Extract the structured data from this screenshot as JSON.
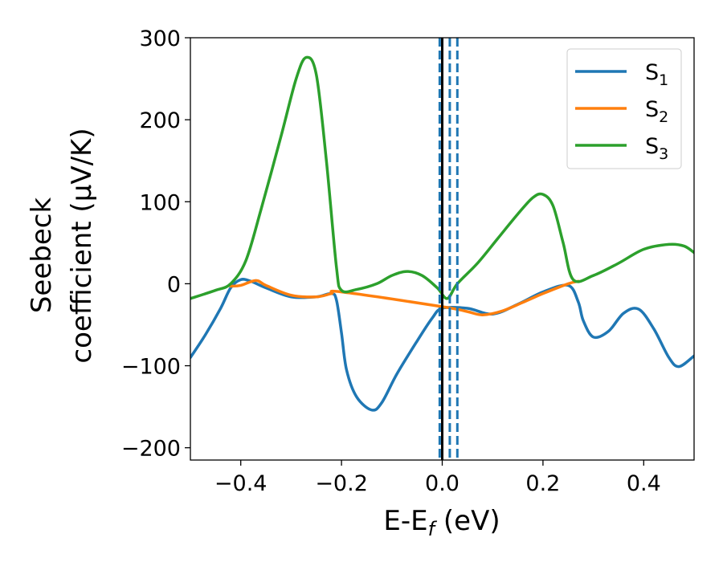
{
  "chart_data": {
    "type": "line",
    "xlabel": "E-E",
    "xlabel_sub": "f",
    "xlabel_unit": "(eV)",
    "ylabel_line1": "Seebeck",
    "ylabel_line2": "coefficient  (μV/K)",
    "xlim": [
      -0.5,
      0.5
    ],
    "ylim": [
      -215,
      300
    ],
    "x_ticks": [
      -0.4,
      -0.2,
      0.0,
      0.2,
      0.4
    ],
    "x_tick_labels": [
      "−0.4",
      "−0.2",
      "0.0",
      "0.2",
      "0.4"
    ],
    "y_ticks": [
      -200,
      -100,
      0,
      100,
      200,
      300
    ],
    "y_tick_labels": [
      "−200",
      "−100",
      "0",
      "100",
      "200",
      "300"
    ],
    "grid": false,
    "legend_placement": "top-right",
    "vertical_lines": [
      {
        "x": 0.0,
        "style": "solid",
        "color": "#000000"
      },
      {
        "x": -0.005,
        "style": "dashed",
        "color": "#1f77b4"
      },
      {
        "x": 0.015,
        "style": "dashed",
        "color": "#1f77b4"
      },
      {
        "x": 0.03,
        "style": "dashed",
        "color": "#1f77b4"
      }
    ],
    "series": [
      {
        "name": "S",
        "sub": "1",
        "color": "#1f77b4",
        "points": [
          [
            -0.5,
            -90
          ],
          [
            -0.47,
            -62
          ],
          [
            -0.44,
            -30
          ],
          [
            -0.42,
            -5
          ],
          [
            -0.4,
            5
          ],
          [
            -0.38,
            3
          ],
          [
            -0.35,
            -5
          ],
          [
            -0.3,
            -16
          ],
          [
            -0.25,
            -16
          ],
          [
            -0.22,
            -12
          ],
          [
            -0.21,
            -20
          ],
          [
            -0.2,
            -60
          ],
          [
            -0.19,
            -105
          ],
          [
            -0.17,
            -138
          ],
          [
            -0.14,
            -154
          ],
          [
            -0.12,
            -145
          ],
          [
            -0.09,
            -110
          ],
          [
            -0.05,
            -70
          ],
          [
            -0.02,
            -42
          ],
          [
            0.0,
            -30
          ],
          [
            0.05,
            -30
          ],
          [
            0.1,
            -37
          ],
          [
            0.15,
            -25
          ],
          [
            0.2,
            -10
          ],
          [
            0.25,
            -2
          ],
          [
            0.27,
            -22
          ],
          [
            0.28,
            -45
          ],
          [
            0.3,
            -65
          ],
          [
            0.33,
            -58
          ],
          [
            0.36,
            -36
          ],
          [
            0.39,
            -31
          ],
          [
            0.42,
            -55
          ],
          [
            0.45,
            -90
          ],
          [
            0.47,
            -101
          ],
          [
            0.5,
            -88
          ]
        ]
      },
      {
        "name": "S",
        "sub": "2",
        "color": "#ff7f0e",
        "points": [
          [
            -0.42,
            -3
          ],
          [
            -0.4,
            -2
          ],
          [
            -0.37,
            4
          ],
          [
            -0.35,
            -2
          ],
          [
            -0.3,
            -14
          ],
          [
            -0.25,
            -16
          ],
          [
            -0.22,
            -12
          ],
          [
            -0.2,
            -10
          ],
          [
            0.0,
            -28
          ],
          [
            0.05,
            -34
          ],
          [
            0.08,
            -38
          ],
          [
            0.12,
            -33
          ],
          [
            0.17,
            -20
          ],
          [
            0.2,
            -12
          ],
          [
            0.25,
            0
          ],
          [
            0.27,
            3
          ]
        ]
      },
      {
        "name": "S",
        "sub": "3",
        "color": "#2ca02c",
        "points": [
          [
            -0.5,
            -18
          ],
          [
            -0.45,
            -8
          ],
          [
            -0.42,
            0
          ],
          [
            -0.39,
            28
          ],
          [
            -0.36,
            90
          ],
          [
            -0.32,
            180
          ],
          [
            -0.29,
            250
          ],
          [
            -0.27,
            276
          ],
          [
            -0.25,
            255
          ],
          [
            -0.23,
            150
          ],
          [
            -0.21,
            20
          ],
          [
            -0.2,
            -8
          ],
          [
            -0.17,
            -7
          ],
          [
            -0.13,
            0
          ],
          [
            -0.1,
            10
          ],
          [
            -0.07,
            15
          ],
          [
            -0.04,
            10
          ],
          [
            -0.01,
            -5
          ],
          [
            0.01,
            -18
          ],
          [
            0.03,
            0
          ],
          [
            0.07,
            25
          ],
          [
            0.11,
            55
          ],
          [
            0.15,
            85
          ],
          [
            0.18,
            105
          ],
          [
            0.2,
            109
          ],
          [
            0.22,
            95
          ],
          [
            0.24,
            50
          ],
          [
            0.26,
            5
          ],
          [
            0.3,
            10
          ],
          [
            0.35,
            25
          ],
          [
            0.4,
            42
          ],
          [
            0.45,
            48
          ],
          [
            0.48,
            46
          ],
          [
            0.5,
            38
          ]
        ]
      }
    ]
  }
}
